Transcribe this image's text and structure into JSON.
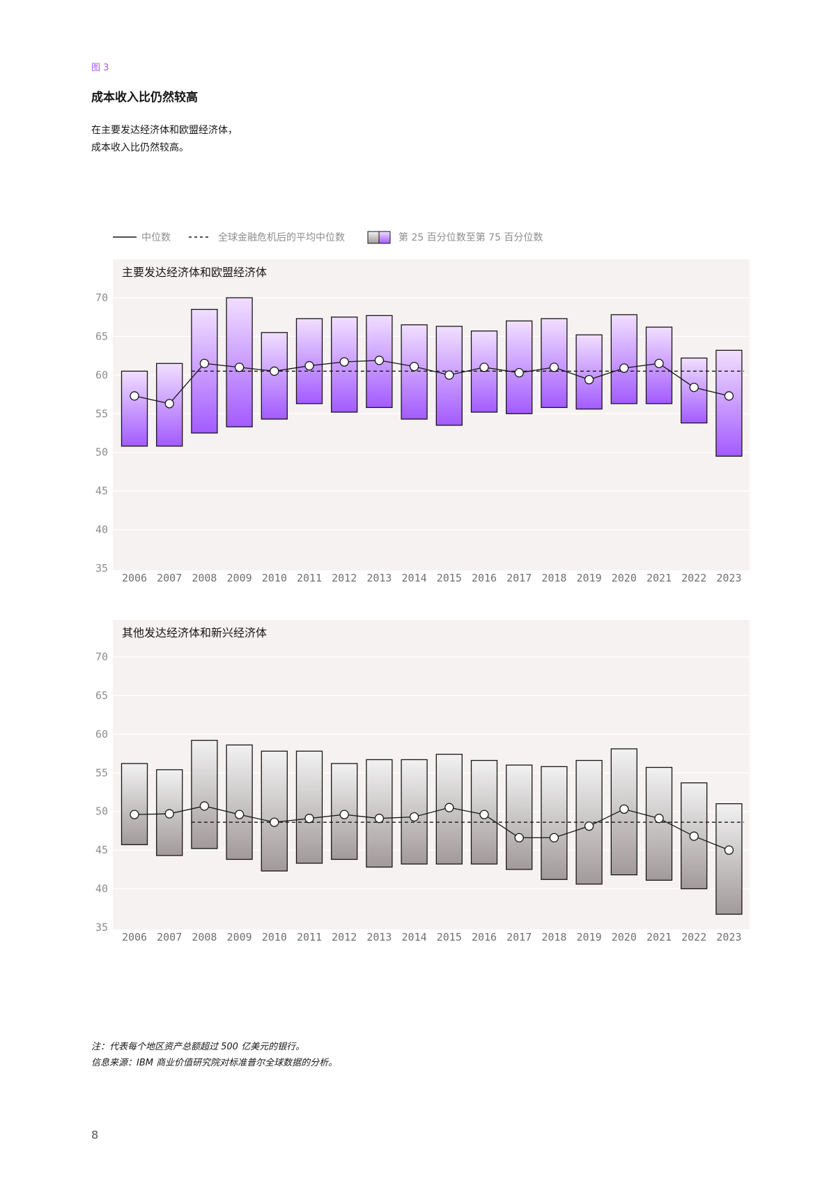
{
  "figure_label": "图 3",
  "title": "成本收入比仍然较高",
  "subtitle_lines": [
    "在主要发达经济体和欧盟经济体，",
    "成本收入比仍然较高。"
  ],
  "legend": {
    "median": "中位数",
    "post_crisis_avg": "全球金融危机后的平均中位数",
    "range": "第 25 百分位数至第 75 百分位数"
  },
  "colors": {
    "panel_bg": "#f7f2f2",
    "purple_top": "#f1dfff",
    "purple_bottom": "#a35bff",
    "gray_top": "#f2f2f2",
    "gray_bottom": "#a29a9a",
    "line": "#161616",
    "accent": "#a35bff"
  },
  "chart_data": [
    {
      "type": "box-range-line",
      "title": "主要发达经济体和欧盟经济体",
      "categories": [
        "2006",
        "2007",
        "2008",
        "2009",
        "2010",
        "2011",
        "2012",
        "2013",
        "2014",
        "2015",
        "2016",
        "2017",
        "2018",
        "2019",
        "2020",
        "2021",
        "2022",
        "2023"
      ],
      "yticks": [
        35,
        40,
        45,
        50,
        55,
        60,
        65,
        70
      ],
      "ylim": [
        35,
        72
      ],
      "p75": [
        60.5,
        61.5,
        68.5,
        70,
        65.5,
        67.3,
        67.5,
        67.7,
        66.5,
        66.3,
        65.7,
        67,
        67.3,
        65.2,
        67.8,
        66.2,
        62.2,
        63.2
      ],
      "p25": [
        50.8,
        50.8,
        52.5,
        53.3,
        54.3,
        56.3,
        55.2,
        55.8,
        54.3,
        53.5,
        55.2,
        55,
        55.8,
        55.6,
        56.3,
        56.3,
        53.8,
        49.5
      ],
      "median": [
        57.3,
        56.3,
        61.5,
        61,
        60.5,
        61.2,
        61.7,
        61.9,
        61.1,
        60,
        61,
        60.3,
        61,
        59.4,
        60.9,
        61.5,
        58.4,
        57.3
      ],
      "post_crisis_avg": 60.5,
      "post_crisis_start": "2008",
      "color": "purple"
    },
    {
      "type": "box-range-line",
      "title": "其他发达经济体和新兴经济体",
      "categories": [
        "2006",
        "2007",
        "2008",
        "2009",
        "2010",
        "2011",
        "2012",
        "2013",
        "2014",
        "2015",
        "2016",
        "2017",
        "2018",
        "2019",
        "2020",
        "2021",
        "2022",
        "2023"
      ],
      "yticks": [
        35,
        40,
        45,
        50,
        55,
        60,
        65,
        70
      ],
      "ylim": [
        35,
        72
      ],
      "p75": [
        56.2,
        55.4,
        59.2,
        58.6,
        57.8,
        57.8,
        56.2,
        56.7,
        56.7,
        57.4,
        56.6,
        56,
        55.8,
        56.6,
        58.1,
        55.7,
        53.7,
        51
      ],
      "p25": [
        45.7,
        44.3,
        45.2,
        43.8,
        42.3,
        43.3,
        43.8,
        42.8,
        43.2,
        43.2,
        43.2,
        42.5,
        41.2,
        40.6,
        41.8,
        41.1,
        40,
        36.7
      ],
      "median": [
        49.6,
        49.7,
        50.7,
        49.6,
        48.6,
        49.1,
        49.6,
        49.1,
        49.3,
        50.5,
        49.6,
        46.6,
        46.6,
        48.1,
        50.3,
        49.1,
        46.8,
        45
      ],
      "post_crisis_avg": 48.6,
      "post_crisis_start": "2008",
      "color": "gray"
    }
  ],
  "notes": [
    "注：代表每个地区资产总额超过 500 亿美元的银行。",
    "信息来源：IBM 商业价值研究院对标准普尔全球数据的分析。"
  ],
  "page_number": "8"
}
